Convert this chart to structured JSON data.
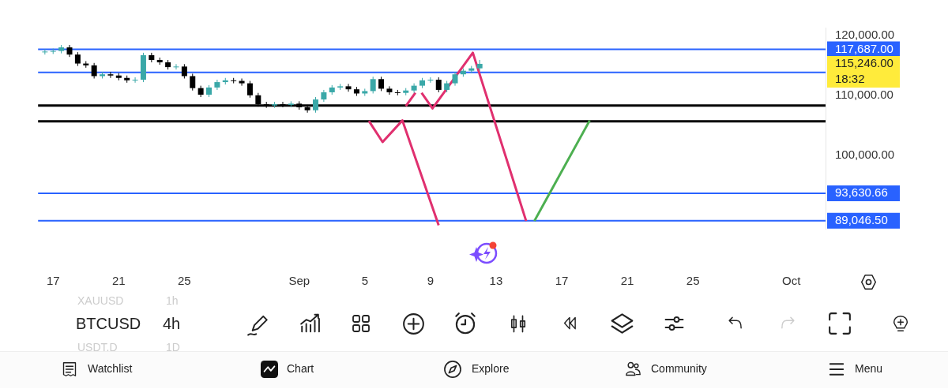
{
  "chart_data": {
    "type": "candlestick",
    "x": [
      "--08-16T12:00",
      "--08-17T00:00",
      "--08-17T12:00",
      "--08-18T00:00",
      "--08-18T12:00",
      "--08-19T00:00",
      "--08-19T12:00",
      "--08-20T00:00",
      "--08-20T12:00",
      "--08-21T00:00",
      "--08-21T12:00",
      "--08-22T00:00",
      "--08-22T12:00",
      "--08-23T00:00",
      "--08-23T12:00",
      "--08-24T00:00",
      "--08-24T12:00",
      "--08-25T00:00",
      "--08-25T12:00",
      "--08-26T00:00",
      "--08-26T12:00",
      "--08-27T00:00",
      "--08-27T12:00",
      "--08-28T00:00",
      "--08-28T12:00",
      "--08-29T00:00",
      "--08-29T12:00",
      "--08-30T00:00",
      "--08-30T12:00",
      "--08-31T00:00",
      "--08-31T12:00",
      "--09-01T00:00",
      "--09-01T12:00",
      "--09-02T00:00",
      "--09-02T12:00",
      "--09-03T00:00",
      "--09-03T12:00",
      "--09-04T00:00",
      "--09-04T12:00",
      "--09-05T00:00",
      "--09-05T12:00",
      "--09-06T00:00",
      "--09-06T12:00",
      "--09-07T00:00",
      "--09-07T12:00",
      "--09-08T00:00",
      "--09-08T12:00",
      "--09-09T00:00",
      "--09-09T12:00",
      "--09-10T00:00",
      "--09-10T12:00",
      "--09-11T00:00",
      "--09-11T12:00",
      "--09-12T00:00"
    ],
    "ohlc": [
      [
        117200,
        117700,
        116800,
        117300
      ],
      [
        117300,
        117800,
        116900,
        117400
      ],
      [
        117400,
        118400,
        117000,
        118000
      ],
      [
        118000,
        118400,
        116400,
        116800
      ],
      [
        116800,
        117200,
        114900,
        115300
      ],
      [
        115300,
        115700,
        114600,
        115000
      ],
      [
        115000,
        115400,
        112800,
        113200
      ],
      [
        113200,
        113900,
        112800,
        113500
      ],
      [
        113500,
        113900,
        112900,
        113300
      ],
      [
        113300,
        113700,
        112500,
        112900
      ],
      [
        112900,
        113300,
        112100,
        112500
      ],
      [
        112500,
        113000,
        112100,
        112600
      ],
      [
        112600,
        117100,
        112200,
        116700
      ],
      [
        116700,
        117100,
        115500,
        115900
      ],
      [
        115900,
        116300,
        115100,
        115500
      ],
      [
        115500,
        115900,
        114300,
        114700
      ],
      [
        114700,
        115200,
        114300,
        114800
      ],
      [
        114800,
        115200,
        112800,
        113200
      ],
      [
        113200,
        113600,
        110800,
        111200
      ],
      [
        111200,
        111600,
        109700,
        110100
      ],
      [
        110100,
        111700,
        109700,
        111300
      ],
      [
        111300,
        112600,
        110900,
        112200
      ],
      [
        112200,
        112900,
        111800,
        112500
      ],
      [
        112500,
        112900,
        112000,
        112400
      ],
      [
        112400,
        112800,
        111600,
        112000
      ],
      [
        112000,
        112400,
        109600,
        110000
      ],
      [
        110000,
        110400,
        108100,
        108500
      ],
      [
        108500,
        108900,
        107900,
        108300
      ],
      [
        108300,
        108900,
        107900,
        108500
      ],
      [
        108500,
        108900,
        108000,
        108400
      ],
      [
        108400,
        109000,
        108000,
        108600
      ],
      [
        108600,
        109000,
        107600,
        108000
      ],
      [
        108000,
        108400,
        107100,
        107500
      ],
      [
        107500,
        109700,
        107100,
        109300
      ],
      [
        109300,
        110900,
        108900,
        110500
      ],
      [
        110500,
        111700,
        110100,
        111300
      ],
      [
        111300,
        111900,
        110900,
        111500
      ],
      [
        111500,
        111900,
        110600,
        111000
      ],
      [
        111000,
        111400,
        109900,
        110300
      ],
      [
        110300,
        111100,
        109900,
        110700
      ],
      [
        110700,
        113100,
        110300,
        112700
      ],
      [
        112700,
        113100,
        110700,
        111100
      ],
      [
        111100,
        111500,
        110100,
        110500
      ],
      [
        110500,
        110900,
        110000,
        110400
      ],
      [
        110400,
        111200,
        110000,
        110800
      ],
      [
        110800,
        112000,
        110400,
        111600
      ],
      [
        111600,
        112900,
        111200,
        112500
      ],
      [
        112500,
        113000,
        112100,
        112600
      ],
      [
        112600,
        113000,
        110500,
        110900
      ],
      [
        110900,
        112400,
        110500,
        112000
      ],
      [
        112000,
        113900,
        111600,
        113500
      ],
      [
        113500,
        114500,
        113100,
        114100
      ],
      [
        114100,
        114900,
        113700,
        114500
      ],
      [
        114500,
        115900,
        114100,
        115246
      ]
    ],
    "colors": [
      "#3aa8a8",
      "#3aa8a8",
      "#3aa8a8",
      "#000000",
      "#000000",
      "#000000",
      "#000000",
      "#3aa8a8",
      "#000000",
      "#000000",
      "#000000",
      "#3aa8a8",
      "#3aa8a8",
      "#000000",
      "#000000",
      "#000000",
      "#3aa8a8",
      "#000000",
      "#000000",
      "#000000",
      "#3aa8a8",
      "#3aa8a8",
      "#3aa8a8",
      "#000000",
      "#000000",
      "#000000",
      "#000000",
      "#000000",
      "#3aa8a8",
      "#000000",
      "#3aa8a8",
      "#000000",
      "#000000",
      "#3aa8a8",
      "#3aa8a8",
      "#3aa8a8",
      "#3aa8a8",
      "#000000",
      "#000000",
      "#3aa8a8",
      "#3aa8a8",
      "#000000",
      "#000000",
      "#000000",
      "#3aa8a8",
      "#3aa8a8",
      "#3aa8a8",
      "#3aa8a8",
      "#000000",
      "#3aa8a8",
      "#3aa8a8",
      "#3aa8a8",
      "#3aa8a8",
      "#3aa8a8"
    ],
    "series": [
      {
        "type": "line",
        "color": "#e0306f",
        "x": [
          "--09-05T06:00",
          "--09-06T02:00",
          "--09-07T07:00",
          "--09-09T12:00"
        ],
        "values": [
          105700,
          102200,
          105800,
          88300
        ]
      },
      {
        "type": "line",
        "color": "#e0306f",
        "x": [
          "--09-07T12:00",
          "--09-08T02:00"
        ],
        "values": [
          108200,
          110400
        ]
      },
      {
        "type": "line",
        "color": "#e0306f",
        "x": [
          "--09-08T11:00",
          "--09-09T03:00",
          "--09-11T14:00",
          "--09-14T20:00"
        ],
        "values": [
          110400,
          107800,
          117100,
          89000
        ]
      },
      {
        "type": "line",
        "color": "#4caf50",
        "x": [
          "--09-15T08:00",
          "--09-18T17:00"
        ],
        "values": [
          89000,
          105800
        ]
      }
    ],
    "xlim": [
      "--08-16T02:00",
      "--10-03T02:00"
    ],
    "xticks": [
      {
        "value": "--08-17",
        "label": "17"
      },
      {
        "value": "--08-21",
        "label": "21"
      },
      {
        "value": "--08-25",
        "label": "25"
      },
      {
        "value": "--09-01",
        "label": "Sep"
      },
      {
        "value": "--09-05",
        "label": "5"
      },
      {
        "value": "--09-09",
        "label": "9"
      },
      {
        "value": "--09-13",
        "label": "13"
      },
      {
        "value": "--09-17",
        "label": "17"
      },
      {
        "value": "--09-21",
        "label": "21"
      },
      {
        "value": "--09-25",
        "label": "25"
      },
      {
        "value": "--10-01",
        "label": "Oct"
      }
    ],
    "ylim": [
      87700,
      121300
    ],
    "yticks": [
      {
        "value": 100000,
        "label": "100,000.00"
      },
      {
        "value": 110000,
        "label": "110,000.00"
      },
      {
        "value": 120000,
        "label": "120,000.00"
      }
    ],
    "ref_lines": [
      {
        "axis": "y",
        "value": 117687,
        "label": "117,687.00",
        "color": "#2962ff"
      },
      {
        "axis": "y",
        "value": 113816,
        "label": null,
        "color": "#2962ff"
      },
      {
        "axis": "y",
        "value": 108300,
        "label": null,
        "color": "#000000"
      },
      {
        "axis": "y",
        "value": 105660,
        "label": null,
        "color": "#000000"
      },
      {
        "axis": "y",
        "value": 93630.66,
        "label": "93,630.66",
        "color": "#2962ff"
      },
      {
        "axis": "y",
        "value": 89046.5,
        "label": "89,046.50",
        "color": "#2962ff"
      }
    ],
    "annotations": [
      "115,246.00",
      "18:32",
      "BTCUSD",
      "4h",
      "XAUUSD",
      "1h",
      "USDT.D",
      "1D",
      "Watchlist",
      "Chart",
      "Explore",
      "Community",
      "Menu"
    ],
    "grid": false,
    "legend": false,
    "marker": "none"
  }
}
